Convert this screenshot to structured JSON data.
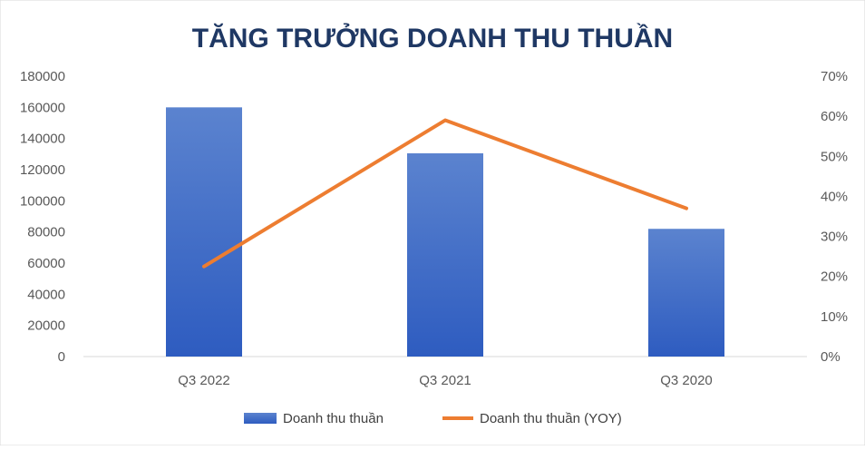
{
  "chart_data": {
    "type": "bar",
    "title": "TĂNG TRƯỞNG DOANH THU THUẦN",
    "categories": [
      "Q3 2022",
      "Q3 2021",
      "Q3 2020"
    ],
    "series": [
      {
        "name": "Doanh thu thuần",
        "type": "bar",
        "axis": "left",
        "values": [
          160000,
          130500,
          82000
        ],
        "color": "#4472c4"
      },
      {
        "name": "Doanh thu thuần (YOY)",
        "type": "line",
        "axis": "right",
        "values": [
          0.225,
          0.59,
          0.37
        ],
        "color": "#ed7d31"
      }
    ],
    "y_left": {
      "min": 0,
      "max": 180000,
      "ticks": [
        "0",
        "20000",
        "40000",
        "60000",
        "80000",
        "100000",
        "120000",
        "140000",
        "160000",
        "180000"
      ]
    },
    "y_right": {
      "min": 0,
      "max": 0.7,
      "ticks": [
        "0%",
        "10%",
        "20%",
        "30%",
        "40%",
        "50%",
        "60%",
        "70%"
      ]
    },
    "grid": false,
    "legend_position": "bottom"
  }
}
